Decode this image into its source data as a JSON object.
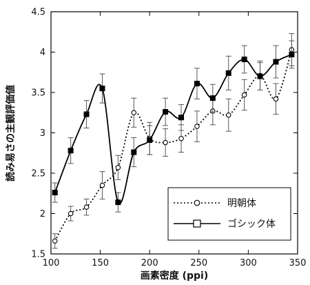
{
  "chart_data": {
    "type": "line",
    "xlabel": "画素密度 (ppi)",
    "ylabel": "読み易さの主観評価値",
    "xlim": [
      100,
      350
    ],
    "ylim": [
      1.5,
      4.5
    ],
    "xticks": [
      100,
      150,
      200,
      250,
      300,
      350
    ],
    "yticks": [
      1.5,
      2,
      2.5,
      3,
      3.5,
      4,
      4.5
    ],
    "grid": false,
    "legend": {
      "placement": "bottom-right"
    },
    "series": [
      {
        "name": "明朝体",
        "style": "dotted",
        "marker": "circle-open",
        "color": "#000000",
        "x": [
          104,
          120,
          136,
          152,
          168,
          184,
          200,
          216,
          232,
          248,
          264,
          280,
          296,
          312,
          328,
          344
        ],
        "y": [
          1.66,
          2.0,
          2.08,
          2.35,
          2.57,
          3.25,
          2.93,
          2.88,
          2.93,
          3.08,
          3.27,
          3.22,
          3.47,
          3.71,
          3.42,
          4.03
        ],
        "err": [
          0.09,
          0.09,
          0.1,
          0.17,
          0.15,
          0.18,
          0.2,
          0.17,
          0.17,
          0.19,
          0.17,
          0.2,
          0.19,
          0.18,
          0.19,
          0.2
        ]
      },
      {
        "name": "ゴシック体",
        "style": "solid",
        "marker": "square-filled",
        "color": "#000000",
        "x": [
          104,
          120,
          136,
          152,
          168,
          184,
          200,
          216,
          232,
          248,
          264,
          280,
          296,
          312,
          328,
          344
        ],
        "y": [
          2.26,
          2.78,
          3.23,
          3.55,
          2.14,
          2.76,
          2.91,
          3.26,
          3.19,
          3.61,
          3.43,
          3.74,
          3.91,
          3.7,
          3.88,
          3.97
        ],
        "err": [
          0.12,
          0.16,
          0.17,
          0.18,
          0.12,
          0.18,
          0.18,
          0.17,
          0.16,
          0.19,
          0.17,
          0.21,
          0.17,
          0.17,
          0.2,
          0.17
        ]
      }
    ]
  }
}
